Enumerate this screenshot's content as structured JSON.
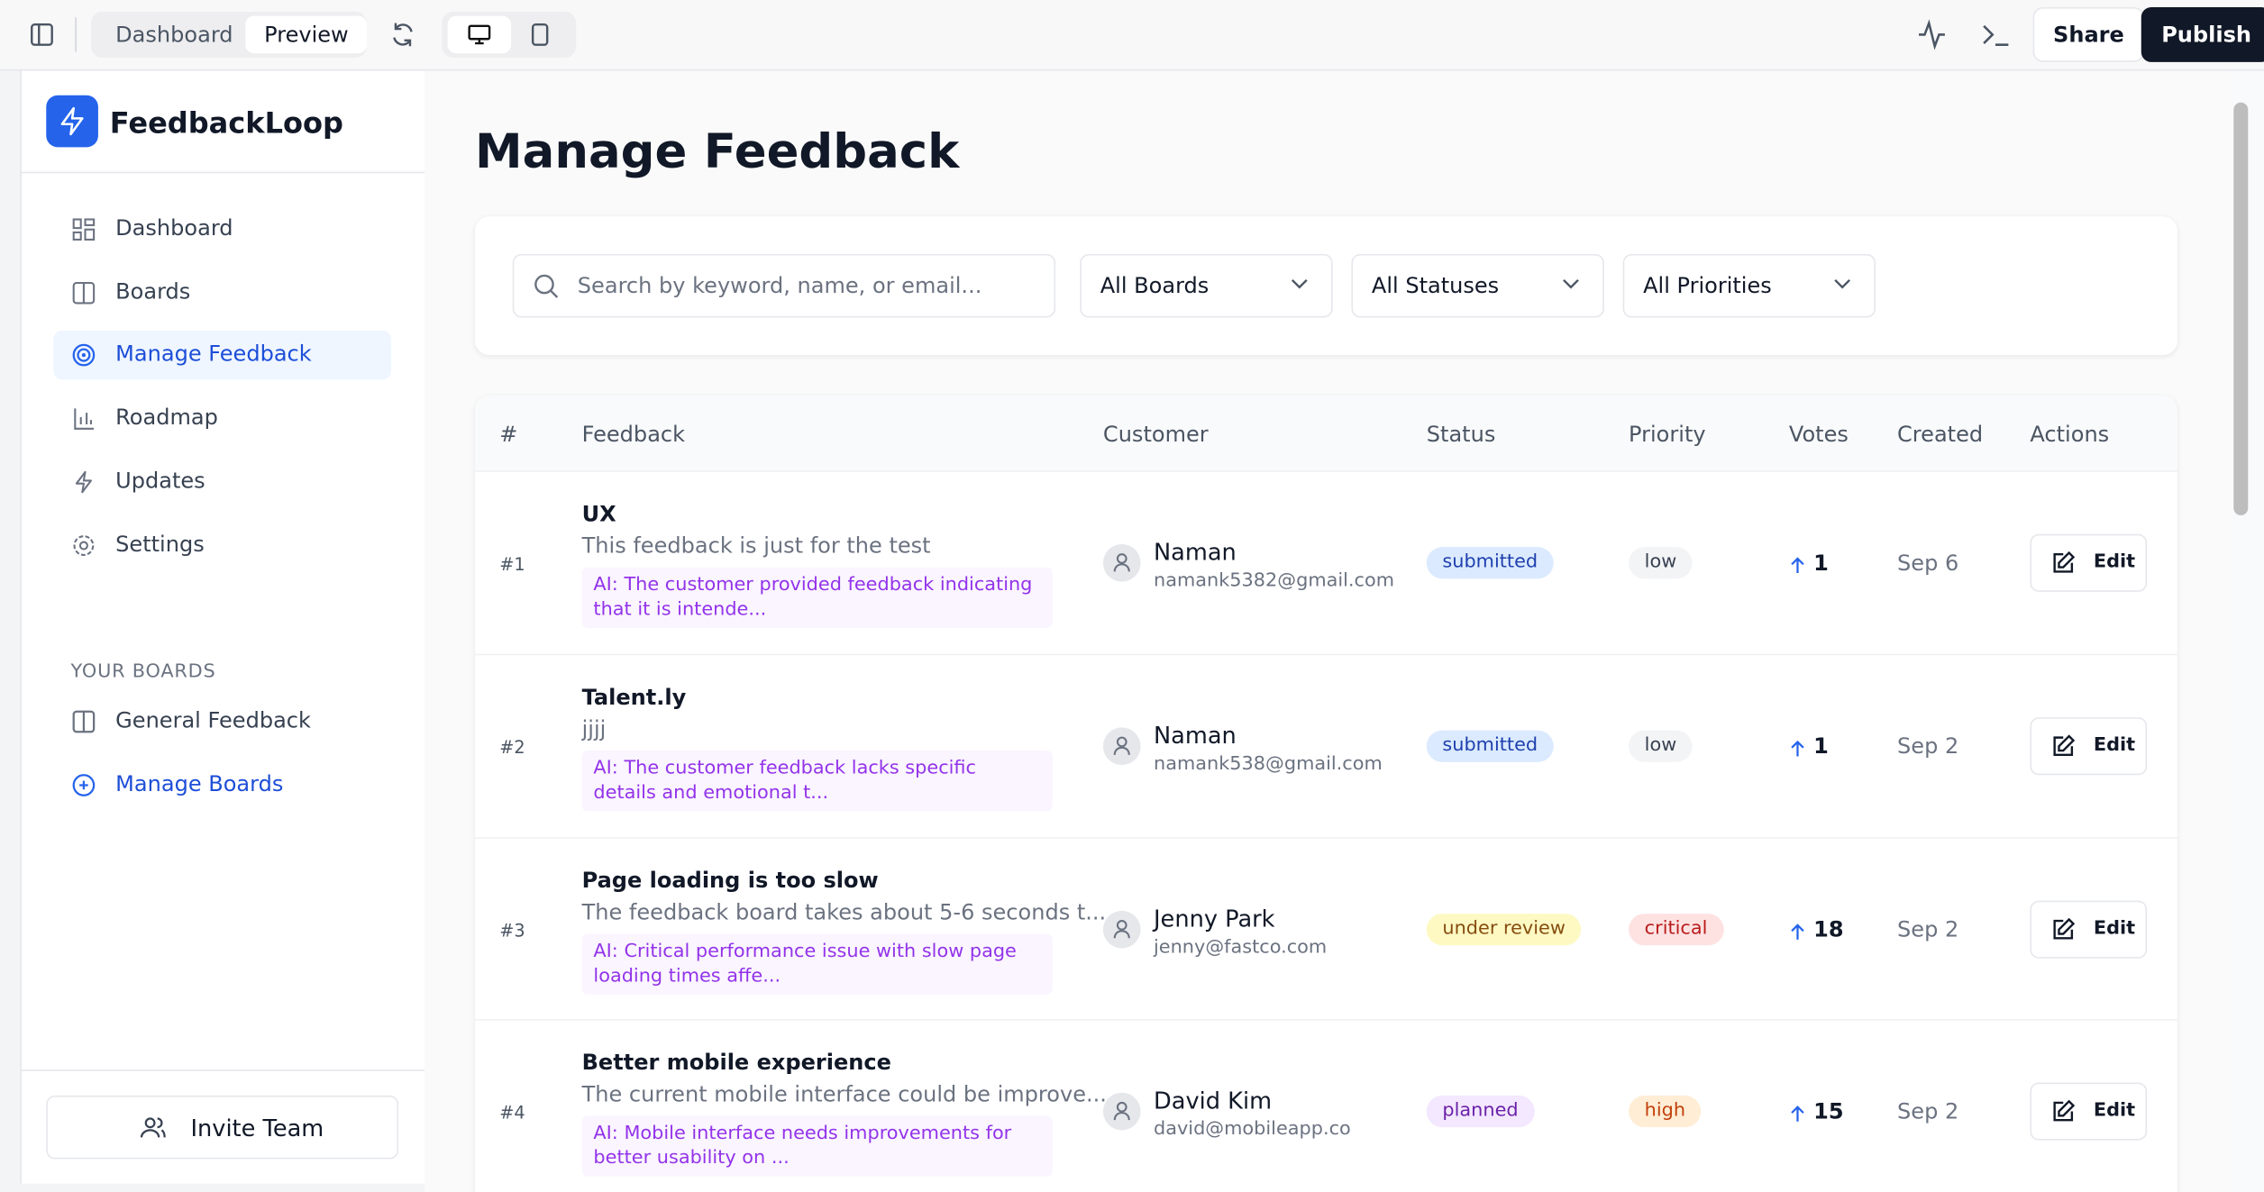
{
  "topbar": {
    "tabs": [
      "Dashboard",
      "Preview"
    ],
    "share": "Share",
    "publish": "Publish"
  },
  "sidebar": {
    "brand": "FeedbackLoop",
    "nav": [
      "Dashboard",
      "Boards",
      "Manage Feedback",
      "Roadmap",
      "Updates",
      "Settings"
    ],
    "section": "YOUR BOARDS",
    "boards": [
      "General Feedback",
      "Manage Boards"
    ],
    "invite": "Invite Team"
  },
  "main": {
    "title": "Manage Feedback",
    "search_placeholder": "Search by keyword, name, or email...",
    "filters": [
      "All Boards",
      "All Statuses",
      "All Priorities"
    ],
    "table": {
      "headers": [
        "#",
        "Feedback",
        "Customer",
        "Status",
        "Priority",
        "Votes",
        "Created",
        "Actions"
      ],
      "rows": [
        {
          "id": "#1",
          "title": "UX",
          "description": "This feedback is just for the test",
          "ai": "AI: The customer provided feedback indicating that it is intende...",
          "name": "Naman",
          "email": "namank5382@gmail.com",
          "status": "submitted",
          "status_color": [
            "#dbeafe",
            "#1e40af"
          ],
          "priority": "low",
          "priority_color": [
            "#f3f4f6",
            "#374151"
          ],
          "votes": 1,
          "created": "Sep 6",
          "action": "Edit"
        },
        {
          "id": "#2",
          "title": "Talent.ly",
          "description": "jjjj",
          "ai": "AI: The customer feedback lacks specific details and emotional t...",
          "name": "Naman",
          "email": "namank538@gmail.com",
          "status": "submitted",
          "status_color": [
            "#dbeafe",
            "#1e40af"
          ],
          "priority": "low",
          "priority_color": [
            "#f3f4f6",
            "#374151"
          ],
          "votes": 1,
          "created": "Sep 2",
          "action": "Edit"
        },
        {
          "id": "#3",
          "title": "Page loading is too slow",
          "description": "The feedback board takes about 5-6 seconds t...",
          "ai": "AI: Critical performance issue with slow page loading times affe...",
          "name": "Jenny Park",
          "email": "jenny@fastco.com",
          "status": "under review",
          "status_color": [
            "#fef9c3",
            "#854d0e"
          ],
          "priority": "critical",
          "priority_color": [
            "#fee2e2",
            "#b91c1c"
          ],
          "votes": 18,
          "created": "Sep 2",
          "action": "Edit"
        },
        {
          "id": "#4",
          "title": "Better mobile experience",
          "description": "The current mobile interface could be improve...",
          "ai": "AI: Mobile interface needs improvements for better usability on ...",
          "name": "David Kim",
          "email": "david@mobileapp.co",
          "status": "planned",
          "status_color": [
            "#f3e8ff",
            "#6b21a8"
          ],
          "priority": "high",
          "priority_color": [
            "#ffedd5",
            "#c2410c"
          ],
          "votes": 15,
          "created": "Sep 2",
          "action": "Edit"
        }
      ]
    }
  }
}
